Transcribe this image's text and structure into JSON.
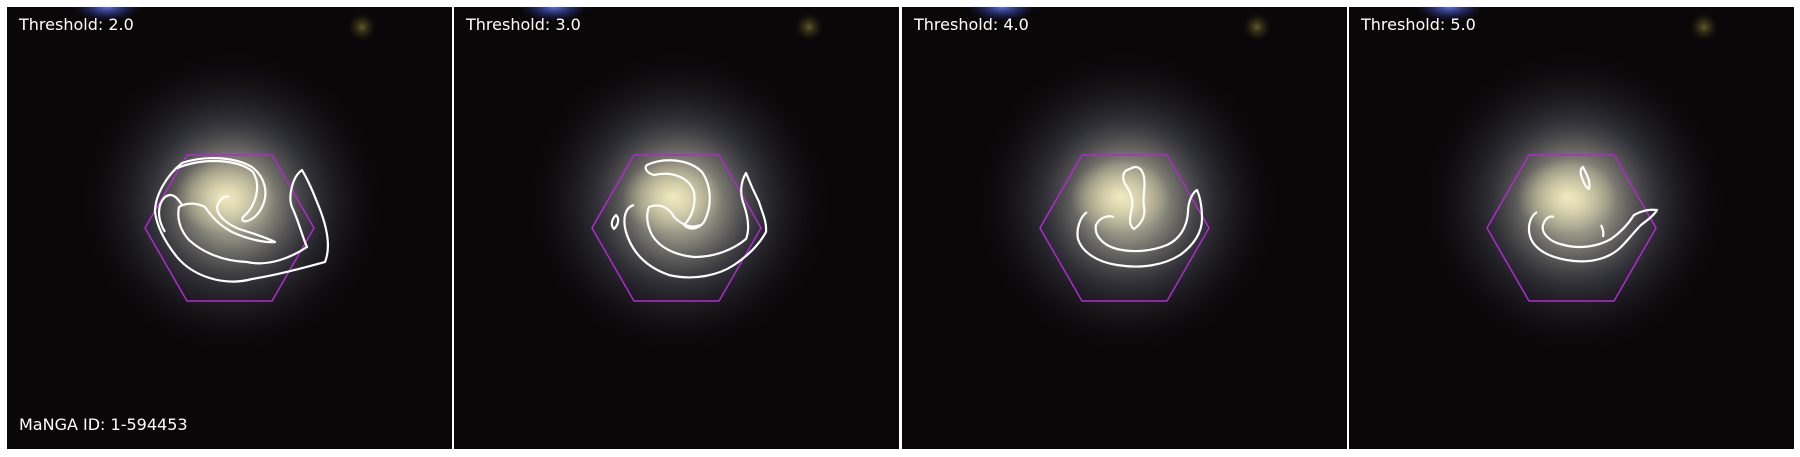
{
  "panels": [
    {
      "threshold_label": "Threshold: 2.0"
    },
    {
      "threshold_label": "Threshold: 3.0"
    },
    {
      "threshold_label": "Threshold: 4.0"
    },
    {
      "threshold_label": "Threshold: 5.0"
    }
  ],
  "manga_id_label": "MaNGA ID: 1-594453",
  "colors": {
    "hexagon": "#b02ad0",
    "contour": "#ffffff",
    "background": "#000000"
  }
}
